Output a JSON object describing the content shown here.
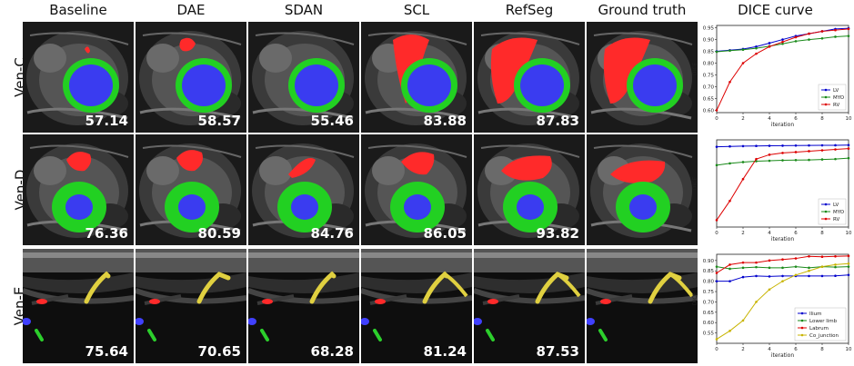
{
  "column_headers": [
    "Baseline",
    "DAE",
    "SDAN",
    "SCL",
    "RefSeg",
    "Ground truth",
    "DICE curve"
  ],
  "rows": [
    {
      "label": "Ven-C",
      "scores": [
        "57.14",
        "58.57",
        "55.46",
        "83.88",
        "87.83",
        ""
      ]
    },
    {
      "label": "Ven-D",
      "scores": [
        "76.36",
        "80.59",
        "84.76",
        "86.05",
        "93.82",
        ""
      ]
    },
    {
      "label": "Ven-E",
      "scores": [
        "75.64",
        "70.65",
        "68.28",
        "81.24",
        "87.53",
        ""
      ]
    }
  ],
  "colors": {
    "lv": "#3a3cf0",
    "myo": "#22d022",
    "rv": "#ff2a2a",
    "labrum": "#ff2a2a",
    "ilium": "#4040ff",
    "lowerlimb": "#2ccf2c",
    "cojunction": "#e0d040"
  },
  "chart_data": [
    {
      "type": "line",
      "x": [
        0,
        1,
        2,
        3,
        4,
        5,
        6,
        7,
        8,
        9,
        10
      ],
      "xlabel": "iteration",
      "ylabel": "DICE",
      "xticks": [
        "0",
        "2",
        "4",
        "6",
        "8",
        "10"
      ],
      "yticks": [
        "0.60",
        "0.65",
        "0.70",
        "0.75",
        "0.80",
        "0.85",
        "0.90",
        "0.95"
      ],
      "ylim": [
        0.59,
        0.96
      ],
      "legend_position": "bottom-right",
      "series": [
        {
          "name": "LV",
          "color": "#0000cc",
          "values": [
            0.85,
            0.855,
            0.86,
            0.87,
            0.885,
            0.9,
            0.915,
            0.925,
            0.935,
            0.945,
            0.948
          ]
        },
        {
          "name": "MYO",
          "color": "#1a8a1a",
          "values": [
            0.848,
            0.853,
            0.857,
            0.863,
            0.872,
            0.882,
            0.893,
            0.9,
            0.905,
            0.912,
            0.915
          ]
        },
        {
          "name": "RV",
          "color": "#dd0000",
          "values": [
            0.6,
            0.72,
            0.8,
            0.84,
            0.87,
            0.89,
            0.91,
            0.925,
            0.935,
            0.94,
            0.945
          ]
        }
      ]
    },
    {
      "type": "line",
      "x": [
        0,
        1,
        2,
        3,
        4,
        5,
        6,
        7,
        8,
        9,
        10
      ],
      "xlabel": "iteration",
      "ylabel": "DICE",
      "xticks": [
        "0",
        "2",
        "4",
        "6",
        "8",
        "10"
      ],
      "yticks": [],
      "ylim": [
        0.0,
        1.0
      ],
      "legend_position": "bottom-right",
      "series": [
        {
          "name": "LV",
          "color": "#0000cc",
          "values": [
            0.92,
            0.925,
            0.928,
            0.93,
            0.932,
            0.933,
            0.935,
            0.936,
            0.937,
            0.938,
            0.94
          ]
        },
        {
          "name": "MYO",
          "color": "#1a8a1a",
          "values": [
            0.71,
            0.73,
            0.745,
            0.755,
            0.76,
            0.765,
            0.768,
            0.77,
            0.775,
            0.78,
            0.79
          ]
        },
        {
          "name": "RV",
          "color": "#dd0000",
          "values": [
            0.08,
            0.3,
            0.55,
            0.78,
            0.83,
            0.85,
            0.86,
            0.87,
            0.88,
            0.89,
            0.9
          ]
        }
      ]
    },
    {
      "type": "line",
      "x": [
        0,
        1,
        2,
        3,
        4,
        5,
        6,
        7,
        8,
        9,
        10
      ],
      "xlabel": "iteration",
      "ylabel": "DICE",
      "xticks": [
        "0",
        "2",
        "4",
        "6",
        "8",
        "10"
      ],
      "yticks": [
        "0.55",
        "0.60",
        "0.65",
        "0.70",
        "0.75",
        "0.80",
        "0.85",
        "0.90"
      ],
      "ylim": [
        0.5,
        0.93
      ],
      "legend_position": "bottom-right",
      "series": [
        {
          "name": "Ilium",
          "color": "#0000cc",
          "values": [
            0.8,
            0.8,
            0.82,
            0.825,
            0.823,
            0.825,
            0.825,
            0.825,
            0.825,
            0.826,
            0.83
          ]
        },
        {
          "name": "Lower limb",
          "color": "#1a8a1a",
          "values": [
            0.87,
            0.86,
            0.865,
            0.868,
            0.865,
            0.865,
            0.87,
            0.865,
            0.87,
            0.868,
            0.87
          ]
        },
        {
          "name": "Labrum",
          "color": "#dd0000",
          "values": [
            0.84,
            0.88,
            0.89,
            0.89,
            0.9,
            0.905,
            0.91,
            0.92,
            0.918,
            0.92,
            0.922
          ]
        },
        {
          "name": "Co_junction",
          "color": "#c8b400",
          "values": [
            0.52,
            0.56,
            0.61,
            0.7,
            0.76,
            0.8,
            0.83,
            0.85,
            0.87,
            0.88,
            0.885
          ]
        }
      ]
    }
  ]
}
